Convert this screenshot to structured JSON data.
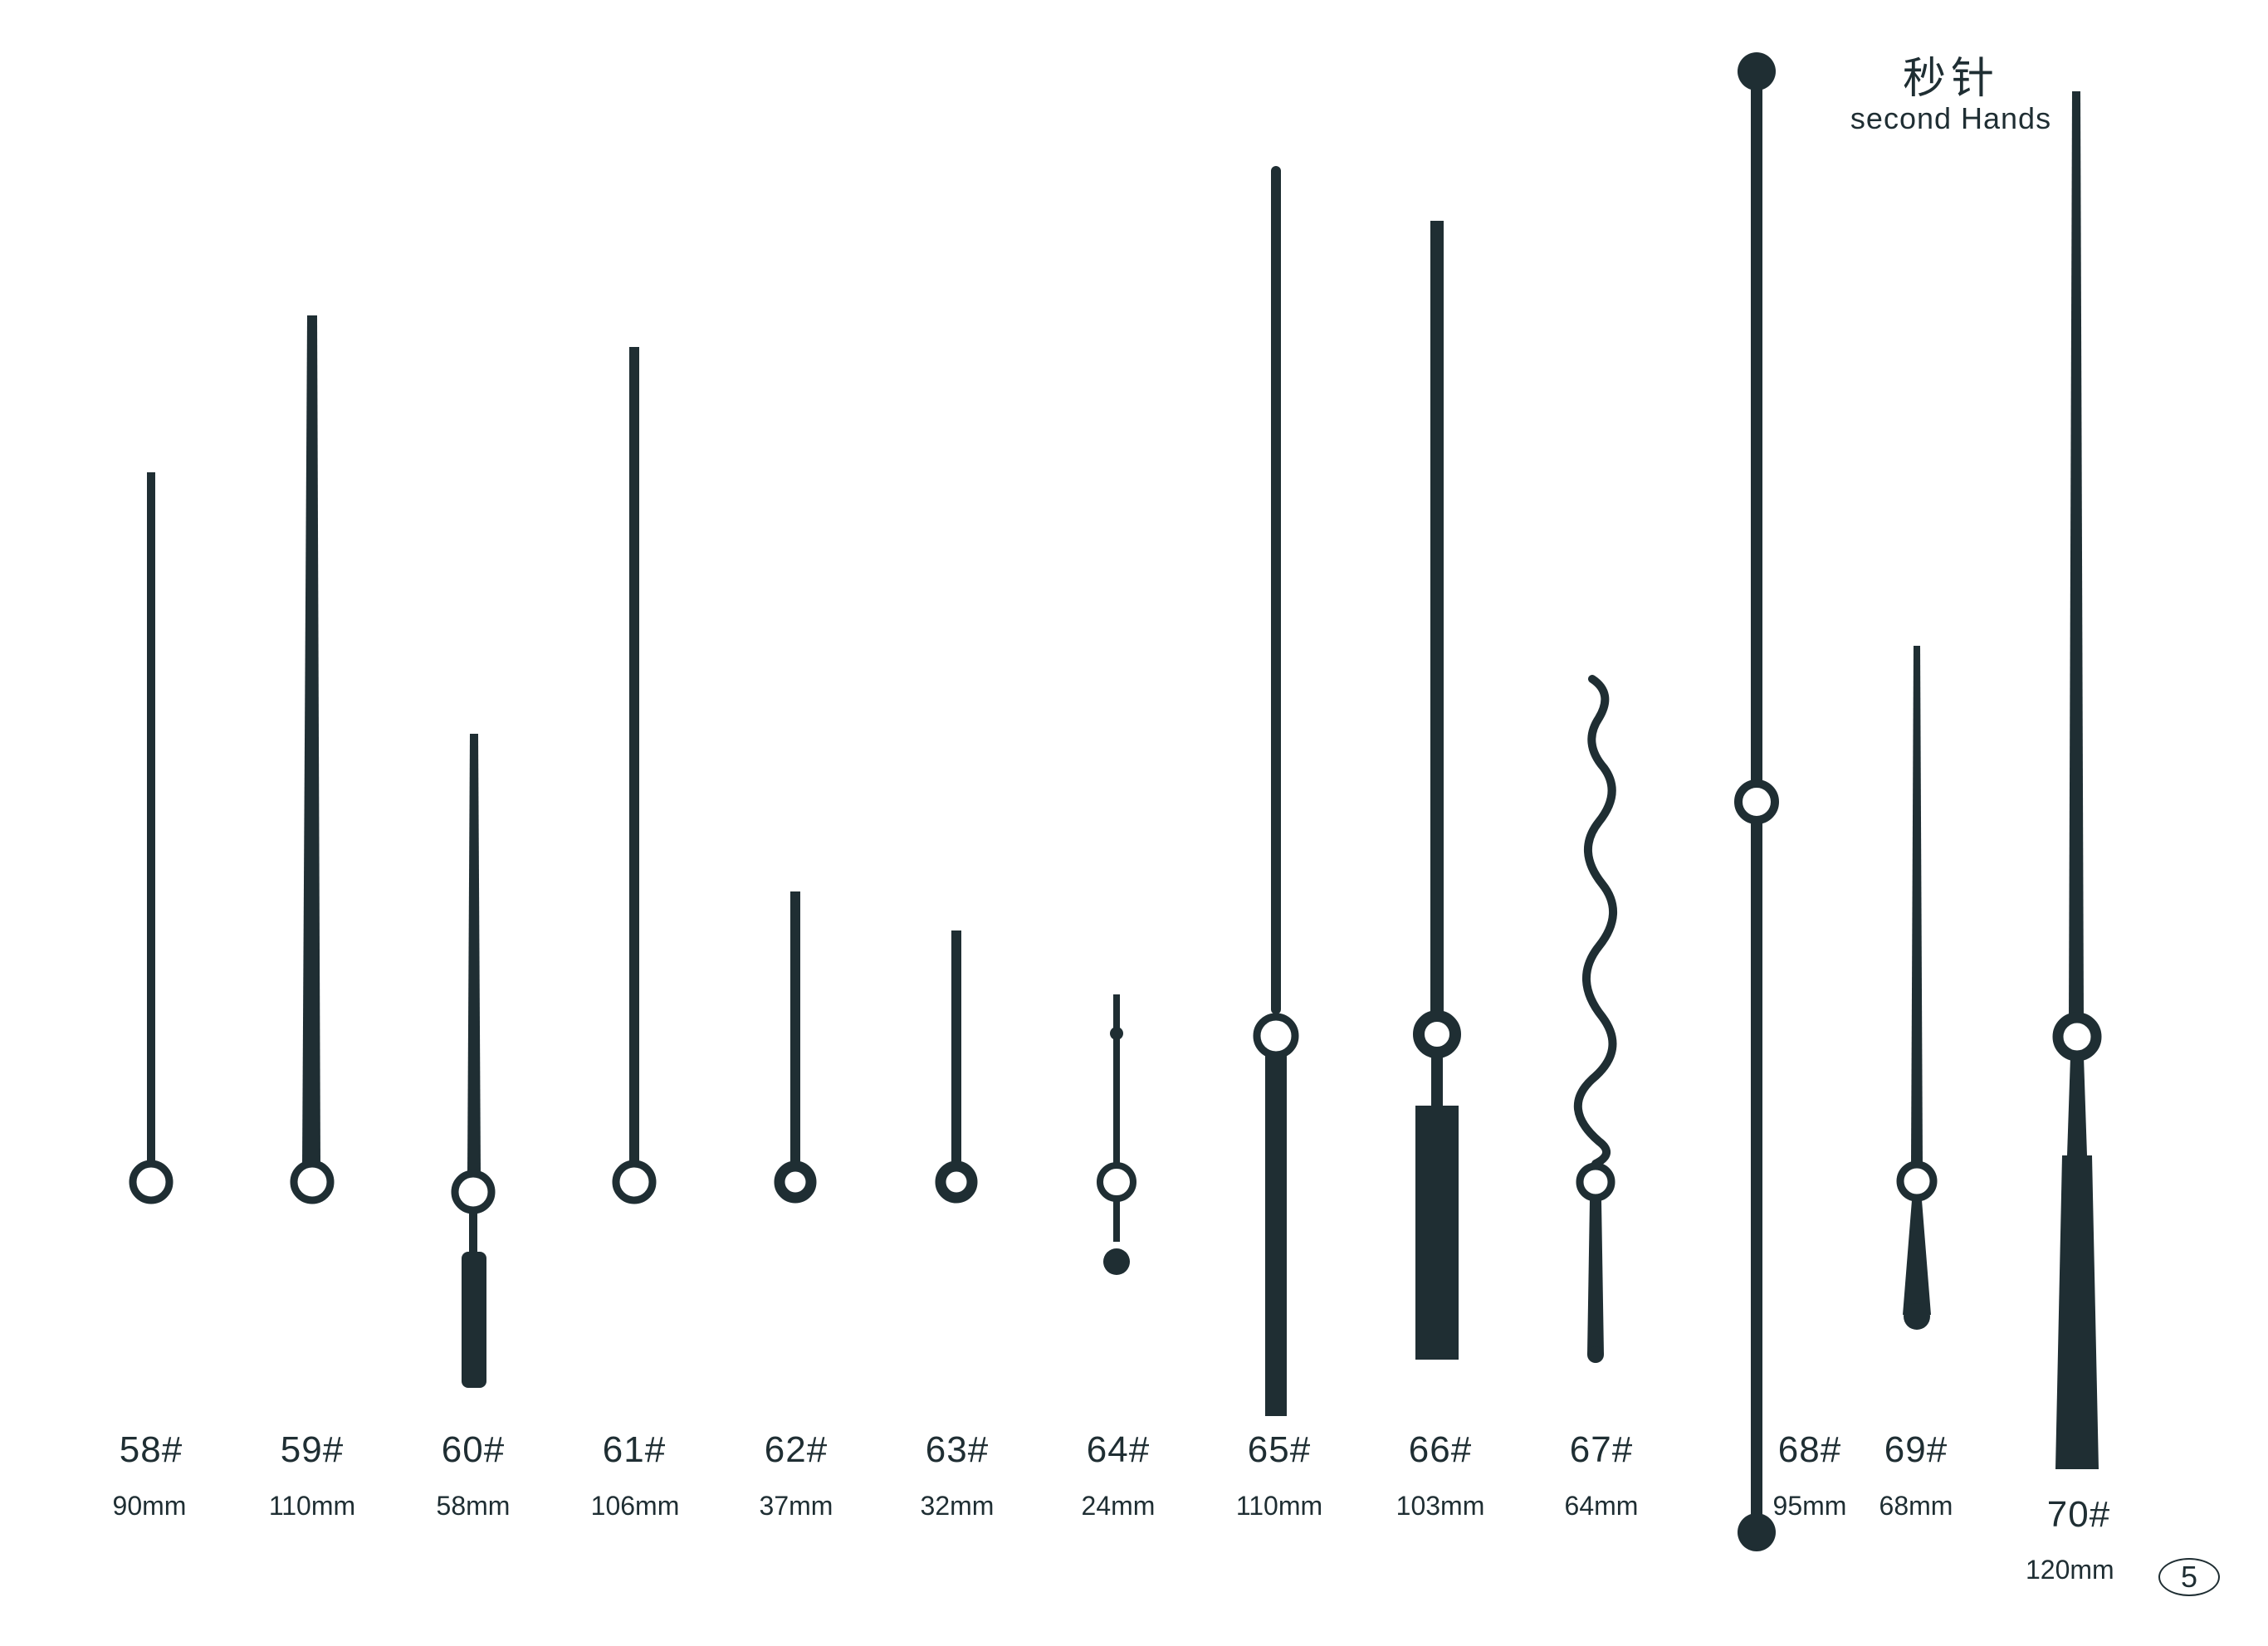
{
  "header": {
    "title_zh": "秒针",
    "title_en": "second Hands"
  },
  "colors": {
    "hand": "#1f2e33",
    "background": "#ffffff"
  },
  "hands": [
    {
      "model": "58#",
      "length": "90mm"
    },
    {
      "model": "59#",
      "length": "110mm"
    },
    {
      "model": "60#",
      "length": "58mm"
    },
    {
      "model": "61#",
      "length": "106mm"
    },
    {
      "model": "62#",
      "length": "37mm"
    },
    {
      "model": "63#",
      "length": "32mm"
    },
    {
      "model": "64#",
      "length": "24mm"
    },
    {
      "model": "65#",
      "length": "110mm"
    },
    {
      "model": "66#",
      "length": "103mm"
    },
    {
      "model": "67#",
      "length": "64mm"
    },
    {
      "model": "68#",
      "length": "95mm"
    },
    {
      "model": "69#",
      "length": "68mm"
    },
    {
      "model": "70#",
      "length": "120mm"
    }
  ],
  "page_number": "5"
}
